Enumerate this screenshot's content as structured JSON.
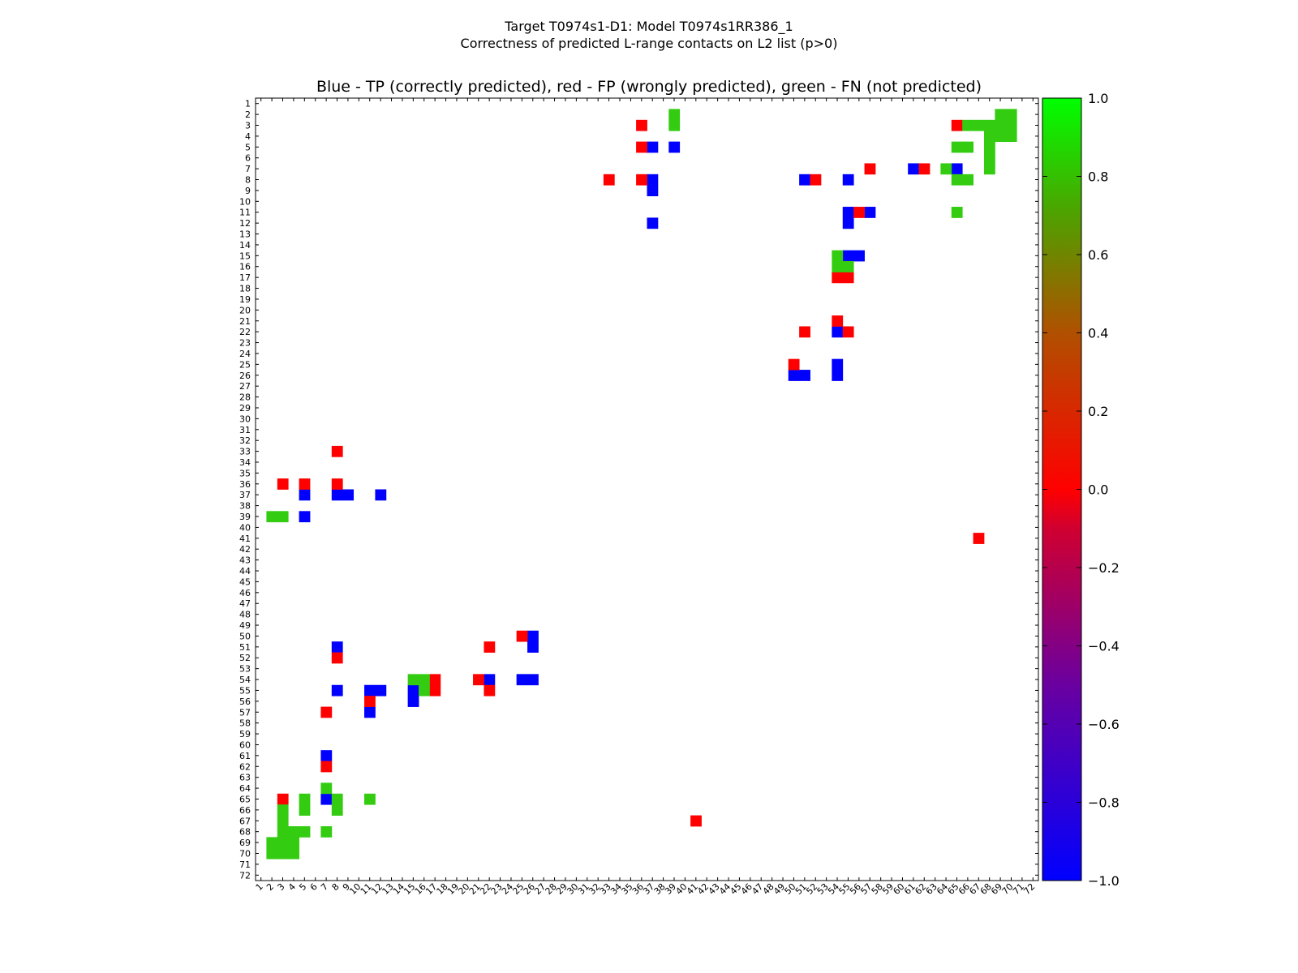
{
  "chart_data": {
    "type": "heatmap",
    "title": "Target T0974s1-D1: Model T0974s1RR386_1",
    "subtitle": "Correctness of predicted L-range contacts on L2 list (p>0)",
    "plot_title": "Blue - TP (correctly predicted), red - FP (wrongly predicted), green - FN (not predicted)",
    "n": 72,
    "x_ticks": [
      "1",
      "2",
      "3",
      "4",
      "5",
      "6",
      "7",
      "8",
      "9",
      "10",
      "11",
      "12",
      "13",
      "14",
      "15",
      "16",
      "17",
      "18",
      "19",
      "20",
      "21",
      "22",
      "23",
      "24",
      "25",
      "26",
      "27",
      "28",
      "29",
      "30",
      "31",
      "32",
      "33",
      "34",
      "35",
      "36",
      "37",
      "38",
      "39",
      "40",
      "41",
      "42",
      "43",
      "44",
      "45",
      "46",
      "47",
      "48",
      "49",
      "50",
      "51",
      "52",
      "53",
      "54",
      "55",
      "56",
      "57",
      "58",
      "59",
      "60",
      "61",
      "62",
      "63",
      "64",
      "65",
      "66",
      "67",
      "68",
      "69",
      "70",
      "71",
      "72"
    ],
    "y_ticks": [
      "1",
      "2",
      "3",
      "4",
      "5",
      "6",
      "7",
      "8",
      "9",
      "10",
      "11",
      "12",
      "13",
      "14",
      "15",
      "16",
      "17",
      "18",
      "19",
      "20",
      "21",
      "22",
      "23",
      "24",
      "25",
      "26",
      "27",
      "28",
      "29",
      "30",
      "31",
      "32",
      "33",
      "34",
      "35",
      "36",
      "37",
      "38",
      "39",
      "40",
      "41",
      "42",
      "43",
      "44",
      "45",
      "46",
      "47",
      "48",
      "49",
      "50",
      "51",
      "52",
      "53",
      "54",
      "55",
      "56",
      "57",
      "58",
      "59",
      "60",
      "61",
      "62",
      "63",
      "64",
      "65",
      "66",
      "67",
      "68",
      "69",
      "70",
      "71",
      "72"
    ],
    "colorbar": {
      "min": -1.0,
      "max": 1.0,
      "ticks": [
        "1.0",
        "0.8",
        "0.6",
        "0.4",
        "0.2",
        "0.0",
        "−0.2",
        "−0.4",
        "−0.6",
        "−0.8",
        "−1.0"
      ],
      "tick_values": [
        1.0,
        0.8,
        0.6,
        0.4,
        0.2,
        0.0,
        -0.2,
        -0.4,
        -0.6,
        -0.8,
        -1.0
      ]
    },
    "colors": {
      "tp": "#0000ff",
      "fp": "#ff0000",
      "fn": "#33cc11"
    },
    "cells": {
      "tp": [
        [
          5,
          37
        ],
        [
          5,
          39
        ],
        [
          8,
          37
        ],
        [
          9,
          37
        ],
        [
          12,
          37
        ],
        [
          8,
          51
        ],
        [
          8,
          55
        ],
        [
          11,
          55
        ],
        [
          11,
          57
        ],
        [
          12,
          55
        ],
        [
          15,
          55
        ],
        [
          15,
          56
        ],
        [
          22,
          54
        ],
        [
          25,
          54
        ],
        [
          26,
          50
        ],
        [
          26,
          51
        ],
        [
          26,
          54
        ],
        [
          7,
          61
        ],
        [
          7,
          65
        ],
        [
          37,
          5
        ],
        [
          37,
          8
        ],
        [
          37,
          9
        ],
        [
          37,
          12
        ],
        [
          39,
          5
        ],
        [
          50,
          26
        ],
        [
          51,
          8
        ],
        [
          51,
          26
        ],
        [
          54,
          25
        ],
        [
          54,
          26
        ],
        [
          55,
          8
        ],
        [
          55,
          11
        ],
        [
          55,
          12
        ],
        [
          54,
          22
        ],
        [
          55,
          15
        ],
        [
          56,
          15
        ],
        [
          57,
          11
        ],
        [
          61,
          7
        ],
        [
          65,
          7
        ]
      ],
      "fp": [
        [
          3,
          36
        ],
        [
          5,
          36
        ],
        [
          8,
          33
        ],
        [
          8,
          36
        ],
        [
          8,
          52
        ],
        [
          11,
          56
        ],
        [
          17,
          54
        ],
        [
          17,
          55
        ],
        [
          21,
          54
        ],
        [
          22,
          51
        ],
        [
          22,
          55
        ],
        [
          25,
          50
        ],
        [
          7,
          57
        ],
        [
          7,
          62
        ],
        [
          3,
          65
        ],
        [
          41,
          67
        ],
        [
          36,
          3
        ],
        [
          36,
          5
        ],
        [
          33,
          8
        ],
        [
          36,
          8
        ],
        [
          52,
          8
        ],
        [
          56,
          11
        ],
        [
          54,
          17
        ],
        [
          55,
          17
        ],
        [
          54,
          21
        ],
        [
          51,
          22
        ],
        [
          55,
          22
        ],
        [
          50,
          25
        ],
        [
          57,
          7
        ],
        [
          62,
          7
        ],
        [
          65,
          3
        ],
        [
          67,
          41
        ]
      ],
      "fn": [
        [
          2,
          39
        ],
        [
          3,
          39
        ],
        [
          2,
          69
        ],
        [
          2,
          70
        ],
        [
          3,
          66
        ],
        [
          3,
          67
        ],
        [
          3,
          68
        ],
        [
          3,
          69
        ],
        [
          3,
          70
        ],
        [
          4,
          68
        ],
        [
          4,
          69
        ],
        [
          4,
          70
        ],
        [
          5,
          65
        ],
        [
          5,
          66
        ],
        [
          5,
          68
        ],
        [
          6,
          68
        ],
        [
          7,
          64
        ],
        [
          7,
          68
        ],
        [
          8,
          65
        ],
        [
          8,
          66
        ],
        [
          11,
          65
        ],
        [
          16,
          54
        ],
        [
          16,
          55
        ],
        [
          15,
          54
        ],
        [
          39,
          2
        ],
        [
          39,
          3
        ],
        [
          54,
          15
        ],
        [
          54,
          16
        ],
        [
          55,
          16
        ],
        [
          64,
          7
        ],
        [
          65,
          5
        ],
        [
          66,
          5
        ],
        [
          65,
          8
        ],
        [
          66,
          8
        ],
        [
          65,
          11
        ],
        [
          66,
          3
        ],
        [
          67,
          3
        ],
        [
          68,
          3
        ],
        [
          68,
          4
        ],
        [
          68,
          5
        ],
        [
          68,
          7
        ],
        [
          69,
          2
        ],
        [
          69,
          3
        ],
        [
          69,
          4
        ],
        [
          70,
          2
        ],
        [
          70,
          3
        ],
        [
          70,
          4
        ]
      ]
    }
  }
}
